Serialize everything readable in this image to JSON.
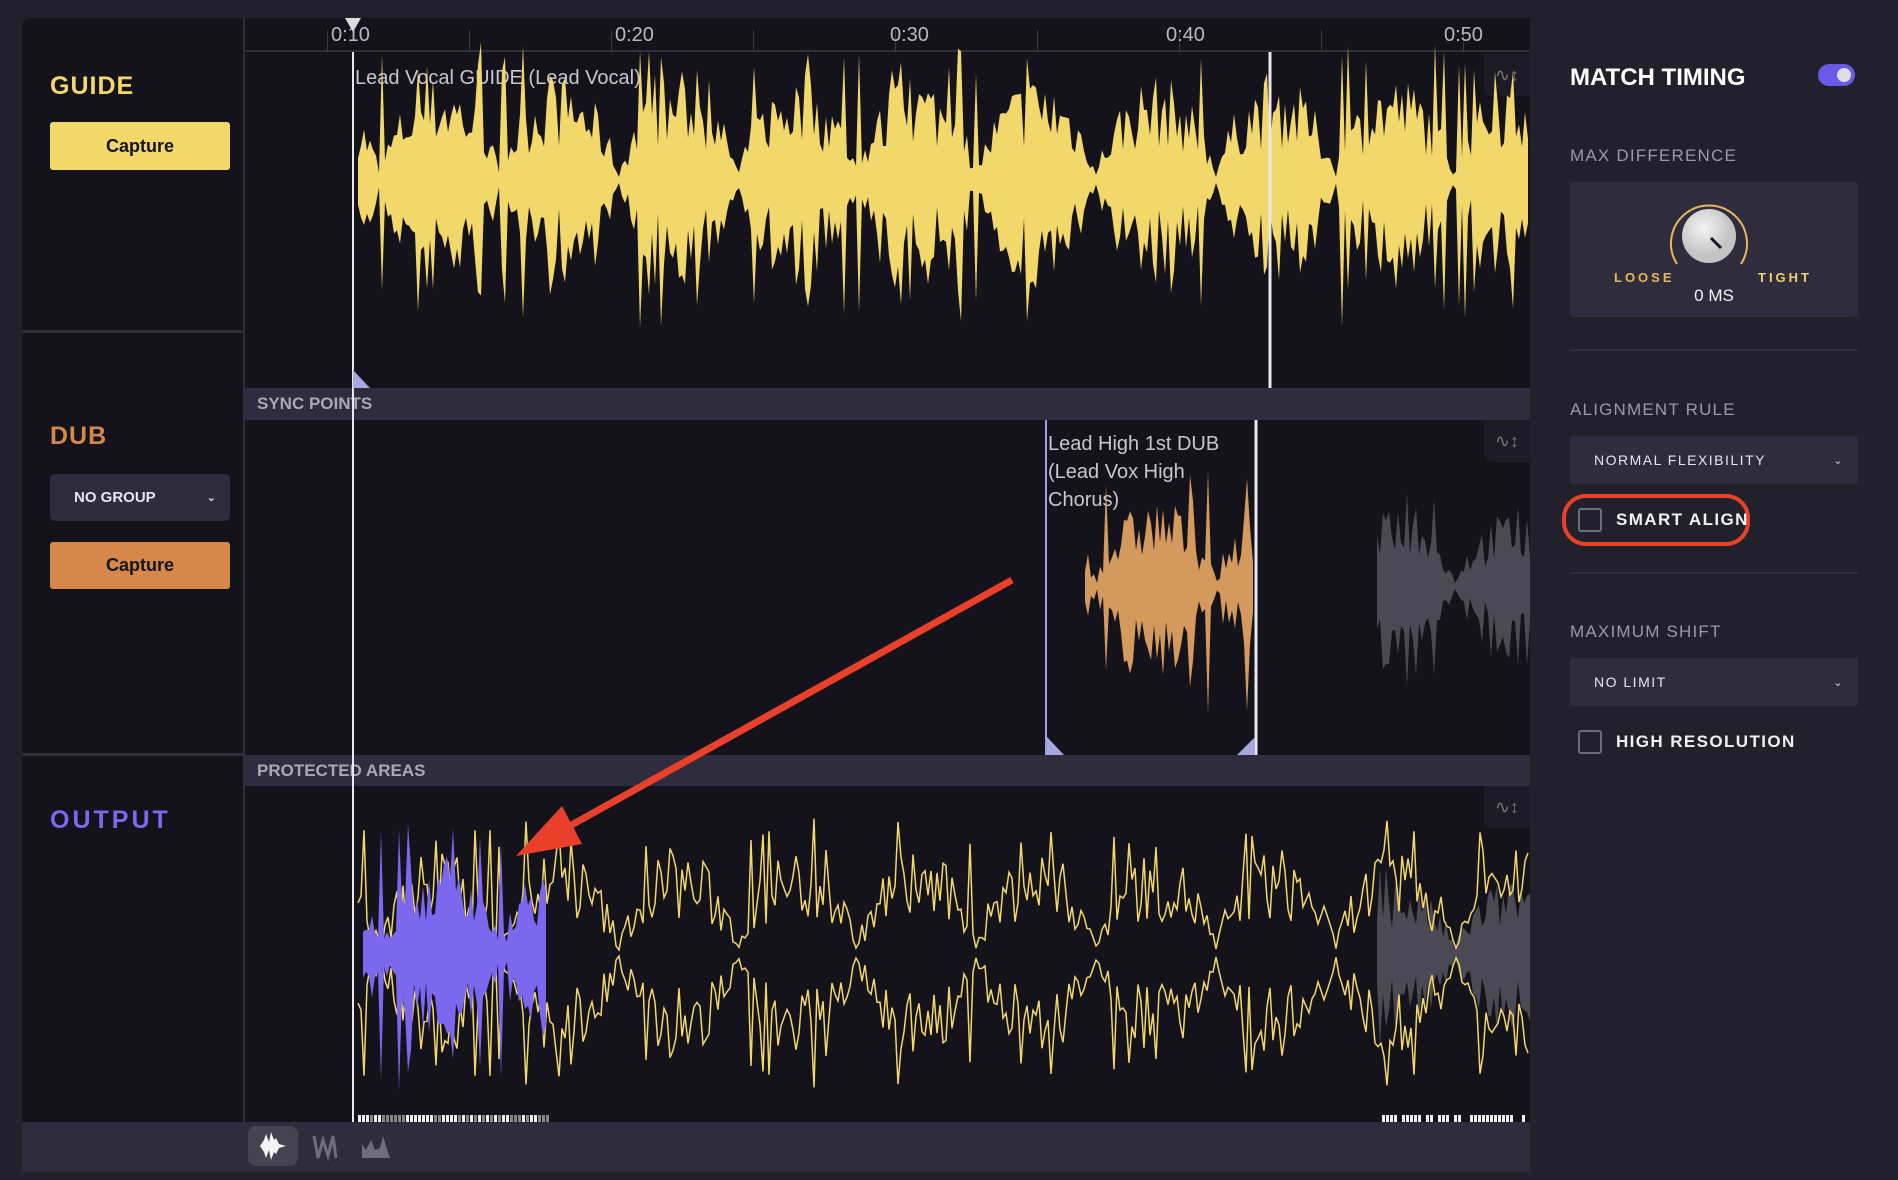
{
  "timeline": {
    "ruler_labels": [
      "0:10",
      "0:20",
      "0:30",
      "0:40",
      "0:50"
    ],
    "sync_points_label": "SYNC POINTS",
    "protected_areas_label": "PROTECTED AREAS"
  },
  "tracks": {
    "guide": {
      "name": "GUIDE",
      "capture_label": "Capture",
      "clip_label": "Lead Vocal GUIDE (Lead Vocal)",
      "color": "#f2d76b"
    },
    "dub": {
      "name": "DUB",
      "group_select": "NO GROUP",
      "capture_label": "Capture",
      "clip_label": "Lead High 1st DUB (Lead Vox High Chorus)",
      "color": "#d6874a",
      "waveform_color": "#d4995d"
    },
    "output": {
      "name": "OUTPUT",
      "color": "#7b68ee"
    }
  },
  "bottom_toolbar": {
    "icons": [
      "waveform-filled-icon",
      "waveform-line-icon",
      "waveform-envelope-icon"
    ],
    "active": "waveform-filled-icon"
  },
  "settings": {
    "title": "MATCH TIMING",
    "enabled": true,
    "max_difference": {
      "label": "MAX DIFFERENCE",
      "loose_label": "LOOSE",
      "tight_label": "TIGHT",
      "value": "0 MS"
    },
    "alignment_rule": {
      "label": "ALIGNMENT RULE",
      "value": "NORMAL FLEXIBILITY",
      "smart_align_label": "SMART ALIGN",
      "smart_align_checked": false
    },
    "maximum_shift": {
      "label": "MAXIMUM SHIFT",
      "value": "NO LIMIT",
      "high_resolution_label": "HIGH RESOLUTION",
      "high_resolution_checked": false
    }
  },
  "annotation": {
    "color": "#e8402a"
  }
}
